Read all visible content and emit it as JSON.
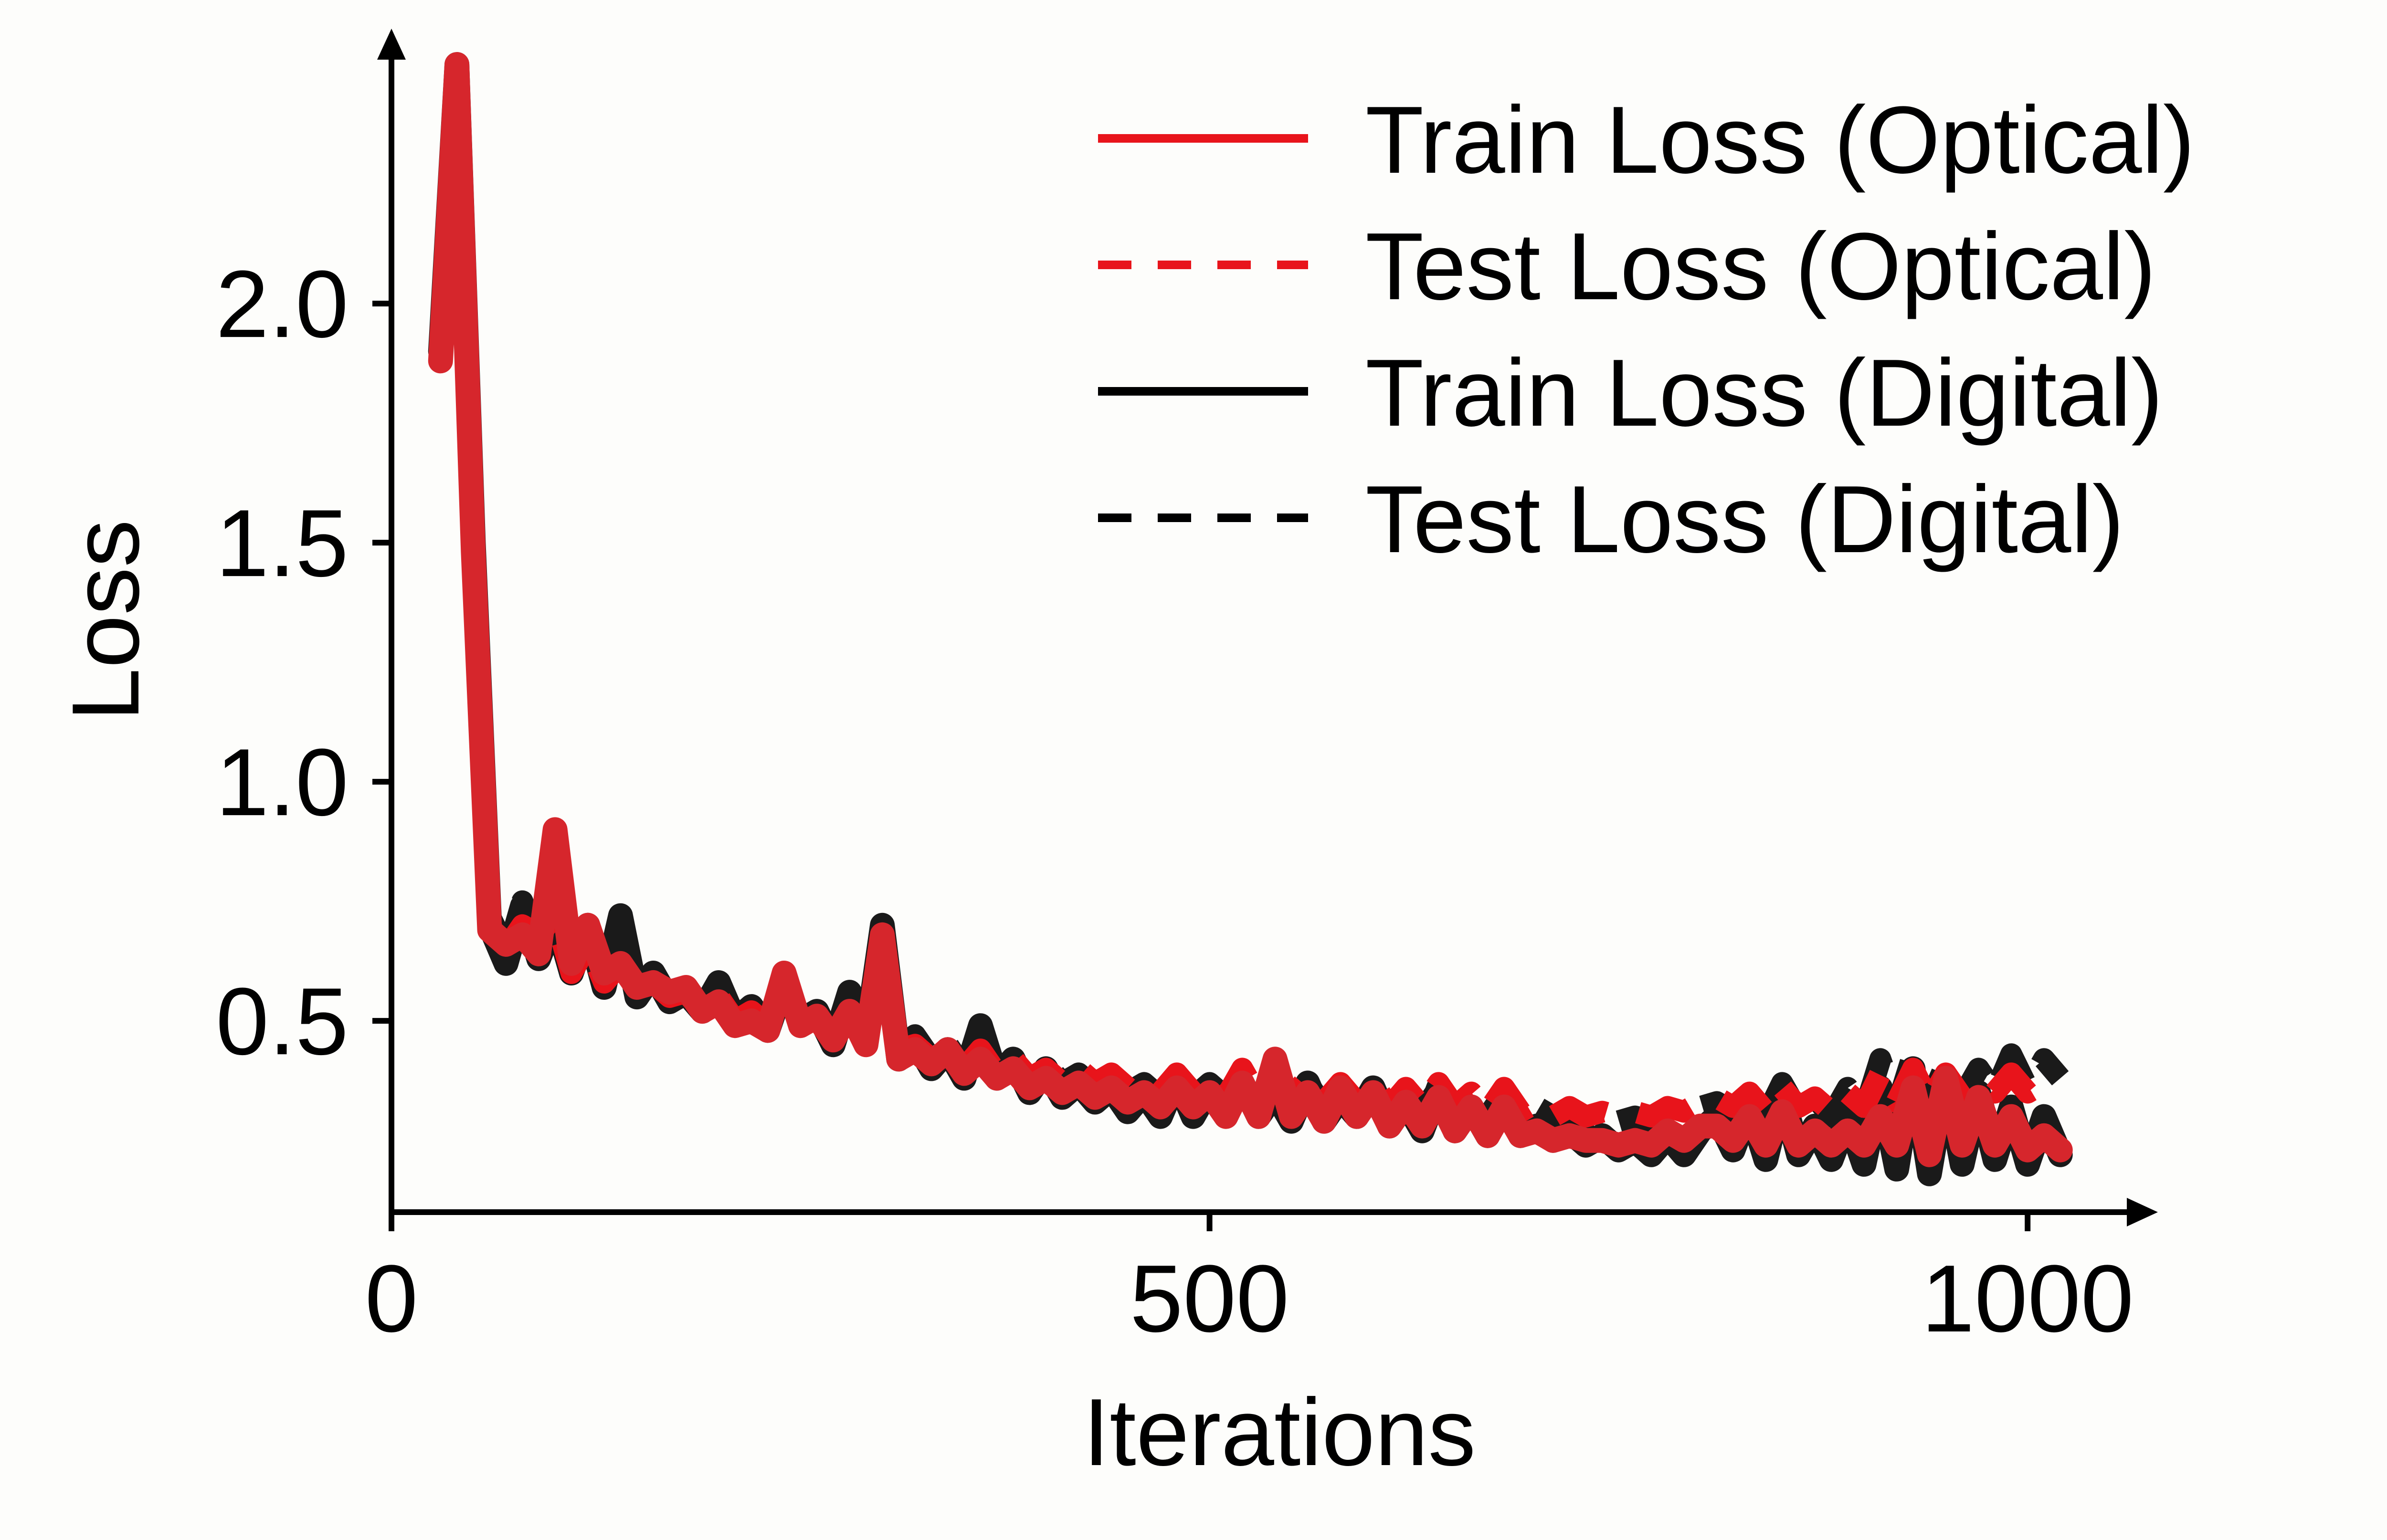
{
  "chart_data": {
    "type": "line",
    "title": "",
    "xlabel": "Iterations",
    "ylabel": "Loss",
    "xlim": [
      0,
      1030
    ],
    "ylim": [
      0.1,
      2.55
    ],
    "xticks": [
      0,
      500,
      1000
    ],
    "yticks": [
      0.5,
      1.0,
      1.5,
      2.0
    ],
    "xtick_labels": [
      "0",
      "500",
      "1000"
    ],
    "ytick_labels": [
      "0.5",
      "1.0",
      "1.5",
      "2.0"
    ],
    "grid": false,
    "legend_position": "top-right",
    "series": [
      {
        "name": "Train Loss (Digital)",
        "color": "#1a1a1a",
        "dash": "solid",
        "x": [
          30,
          40,
          50,
          60,
          70,
          80,
          90,
          100,
          110,
          120,
          130,
          140,
          150,
          160,
          170,
          180,
          190,
          200,
          210,
          220,
          230,
          240,
          250,
          260,
          270,
          280,
          290,
          300,
          310,
          320,
          330,
          340,
          350,
          360,
          370,
          380,
          390,
          400,
          410,
          420,
          430,
          440,
          450,
          460,
          470,
          480,
          490,
          500,
          510,
          520,
          530,
          540,
          550,
          560,
          570,
          580,
          590,
          600,
          610,
          620,
          630,
          640,
          650,
          660,
          670,
          680,
          690,
          700,
          710,
          720,
          730,
          740,
          750,
          760,
          770,
          780,
          790,
          800,
          810,
          820,
          830,
          840,
          850,
          860,
          870,
          880,
          890,
          900,
          910,
          920,
          930,
          940,
          950,
          960,
          970,
          980,
          990,
          1000,
          1010,
          1020
        ],
        "y": [
          1.9,
          2.5,
          1.5,
          0.7,
          0.62,
          0.74,
          0.63,
          0.72,
          0.6,
          0.7,
          0.57,
          0.72,
          0.55,
          0.6,
          0.54,
          0.56,
          0.52,
          0.58,
          0.5,
          0.53,
          0.48,
          0.58,
          0.5,
          0.52,
          0.45,
          0.56,
          0.46,
          0.7,
          0.42,
          0.46,
          0.4,
          0.44,
          0.38,
          0.49,
          0.38,
          0.42,
          0.35,
          0.4,
          0.34,
          0.37,
          0.33,
          0.36,
          0.31,
          0.35,
          0.3,
          0.38,
          0.3,
          0.36,
          0.31,
          0.37,
          0.3,
          0.35,
          0.29,
          0.37,
          0.29,
          0.34,
          0.3,
          0.36,
          0.28,
          0.33,
          0.27,
          0.36,
          0.27,
          0.32,
          0.26,
          0.33,
          0.26,
          0.28,
          0.25,
          0.27,
          0.24,
          0.26,
          0.23,
          0.25,
          0.22,
          0.26,
          0.22,
          0.27,
          0.3,
          0.23,
          0.32,
          0.21,
          0.35,
          0.22,
          0.28,
          0.21,
          0.3,
          0.2,
          0.36,
          0.19,
          0.4,
          0.18,
          0.38,
          0.2,
          0.35,
          0.21,
          0.32,
          0.2,
          0.3,
          0.22
        ]
      },
      {
        "name": "Test Loss (Digital)",
        "color": "#1a1a1a",
        "dash": "dashed",
        "x": [
          30,
          40,
          50,
          60,
          70,
          80,
          90,
          100,
          110,
          120,
          130,
          140,
          150,
          160,
          170,
          180,
          190,
          200,
          210,
          220,
          230,
          240,
          250,
          260,
          270,
          280,
          290,
          300,
          310,
          320,
          330,
          340,
          350,
          360,
          370,
          380,
          390,
          400,
          410,
          420,
          430,
          440,
          450,
          460,
          470,
          480,
          490,
          500,
          510,
          520,
          530,
          540,
          550,
          560,
          570,
          580,
          590,
          600,
          610,
          620,
          630,
          640,
          650,
          660,
          670,
          680,
          690,
          700,
          710,
          720,
          730,
          740,
          750,
          760,
          770,
          780,
          790,
          800,
          810,
          820,
          830,
          840,
          850,
          860,
          870,
          880,
          890,
          900,
          910,
          920,
          930,
          940,
          950,
          960,
          970,
          980,
          990,
          1000,
          1010,
          1020
        ],
        "y": [
          1.9,
          2.45,
          1.55,
          0.72,
          0.65,
          0.75,
          0.66,
          0.7,
          0.62,
          0.68,
          0.6,
          0.68,
          0.57,
          0.59,
          0.55,
          0.57,
          0.53,
          0.56,
          0.52,
          0.54,
          0.5,
          0.56,
          0.5,
          0.52,
          0.47,
          0.54,
          0.48,
          0.65,
          0.44,
          0.47,
          0.42,
          0.45,
          0.4,
          0.47,
          0.4,
          0.42,
          0.38,
          0.41,
          0.37,
          0.39,
          0.36,
          0.38,
          0.35,
          0.37,
          0.34,
          0.38,
          0.34,
          0.37,
          0.34,
          0.38,
          0.33,
          0.37,
          0.33,
          0.37,
          0.32,
          0.36,
          0.32,
          0.36,
          0.31,
          0.35,
          0.31,
          0.36,
          0.31,
          0.34,
          0.3,
          0.35,
          0.3,
          0.32,
          0.3,
          0.31,
          0.29,
          0.31,
          0.29,
          0.3,
          0.29,
          0.31,
          0.3,
          0.32,
          0.33,
          0.31,
          0.35,
          0.3,
          0.37,
          0.31,
          0.34,
          0.3,
          0.36,
          0.31,
          0.42,
          0.32,
          0.43,
          0.33,
          0.41,
          0.34,
          0.4,
          0.35,
          0.43,
          0.36,
          0.42,
          0.38
        ]
      },
      {
        "name": "Test Loss (Optical)",
        "color": "#e8141b",
        "dash": "dashed",
        "x": [
          30,
          40,
          50,
          60,
          70,
          80,
          90,
          100,
          110,
          120,
          130,
          140,
          150,
          160,
          170,
          180,
          190,
          200,
          210,
          220,
          230,
          240,
          250,
          260,
          270,
          280,
          290,
          300,
          310,
          320,
          330,
          340,
          350,
          360,
          370,
          380,
          390,
          400,
          410,
          420,
          430,
          440,
          450,
          460,
          470,
          480,
          490,
          500,
          510,
          520,
          530,
          540,
          550,
          560,
          570,
          580,
          590,
          600,
          610,
          620,
          630,
          640,
          650,
          660,
          670,
          680,
          690,
          700,
          710,
          720,
          730,
          740,
          750,
          760,
          770,
          780,
          790,
          800,
          810,
          820,
          830,
          840,
          850,
          860,
          870,
          880,
          890,
          900,
          910,
          920,
          930,
          940,
          950,
          960,
          970,
          980,
          990,
          1000,
          1010,
          1020
        ],
        "y": [
          1.88,
          2.48,
          1.5,
          0.7,
          0.65,
          0.7,
          0.68,
          0.72,
          0.6,
          0.66,
          0.58,
          0.62,
          0.56,
          0.58,
          0.55,
          0.56,
          0.52,
          0.55,
          0.5,
          0.52,
          0.49,
          0.58,
          0.5,
          0.51,
          0.47,
          0.5,
          0.47,
          0.6,
          0.44,
          0.45,
          0.42,
          0.44,
          0.4,
          0.44,
          0.39,
          0.42,
          0.38,
          0.4,
          0.37,
          0.4,
          0.37,
          0.39,
          0.36,
          0.38,
          0.35,
          0.39,
          0.35,
          0.38,
          0.34,
          0.4,
          0.34,
          0.38,
          0.34,
          0.38,
          0.33,
          0.37,
          0.33,
          0.37,
          0.32,
          0.36,
          0.32,
          0.37,
          0.32,
          0.35,
          0.31,
          0.36,
          0.31,
          0.33,
          0.3,
          0.32,
          0.3,
          0.31,
          0.3,
          0.31,
          0.3,
          0.32,
          0.31,
          0.33,
          0.34,
          0.32,
          0.35,
          0.31,
          0.36,
          0.32,
          0.34,
          0.31,
          0.35,
          0.32,
          0.39,
          0.33,
          0.4,
          0.33,
          0.39,
          0.34,
          0.38,
          0.35,
          0.39,
          0.35,
          0.37,
          0.36
        ]
      },
      {
        "name": "Train Loss (Optical)",
        "color": "#d6262c",
        "dash": "solid",
        "x": [
          30,
          40,
          50,
          60,
          70,
          80,
          90,
          100,
          110,
          120,
          130,
          140,
          150,
          160,
          170,
          180,
          190,
          200,
          210,
          220,
          230,
          240,
          250,
          260,
          270,
          280,
          290,
          300,
          310,
          320,
          330,
          340,
          350,
          360,
          370,
          380,
          390,
          400,
          410,
          420,
          430,
          440,
          450,
          460,
          470,
          480,
          490,
          500,
          510,
          520,
          530,
          540,
          550,
          560,
          570,
          580,
          590,
          600,
          610,
          620,
          630,
          640,
          650,
          660,
          670,
          680,
          690,
          700,
          710,
          720,
          730,
          740,
          750,
          760,
          770,
          780,
          790,
          800,
          810,
          820,
          830,
          840,
          850,
          860,
          870,
          880,
          890,
          900,
          910,
          920,
          930,
          940,
          950,
          960,
          970,
          980,
          990,
          1000,
          1010,
          1020
        ],
        "y": [
          1.88,
          2.5,
          1.48,
          0.69,
          0.66,
          0.68,
          0.64,
          0.9,
          0.62,
          0.7,
          0.6,
          0.62,
          0.57,
          0.58,
          0.56,
          0.57,
          0.52,
          0.54,
          0.49,
          0.5,
          0.48,
          0.6,
          0.49,
          0.51,
          0.46,
          0.52,
          0.45,
          0.68,
          0.42,
          0.44,
          0.41,
          0.44,
          0.39,
          0.42,
          0.38,
          0.4,
          0.36,
          0.38,
          0.35,
          0.37,
          0.34,
          0.36,
          0.33,
          0.35,
          0.32,
          0.36,
          0.32,
          0.35,
          0.3,
          0.37,
          0.3,
          0.42,
          0.3,
          0.35,
          0.29,
          0.36,
          0.3,
          0.35,
          0.28,
          0.33,
          0.28,
          0.34,
          0.27,
          0.32,
          0.26,
          0.32,
          0.26,
          0.27,
          0.25,
          0.26,
          0.25,
          0.25,
          0.24,
          0.25,
          0.24,
          0.27,
          0.25,
          0.28,
          0.28,
          0.25,
          0.3,
          0.24,
          0.31,
          0.24,
          0.27,
          0.24,
          0.27,
          0.24,
          0.3,
          0.24,
          0.36,
          0.22,
          0.38,
          0.24,
          0.34,
          0.24,
          0.3,
          0.23,
          0.26,
          0.23
        ]
      }
    ],
    "legend": [
      {
        "name": "Train Loss (Optical)",
        "color": "#e8141b",
        "dash": "solid"
      },
      {
        "name": "Test Loss (Optical)",
        "color": "#e8141b",
        "dash": "dashed"
      },
      {
        "name": "Train Loss (Digital)",
        "color": "#000000",
        "dash": "solid"
      },
      {
        "name": "Test Loss (Digital)",
        "color": "#000000",
        "dash": "dashed"
      }
    ]
  }
}
